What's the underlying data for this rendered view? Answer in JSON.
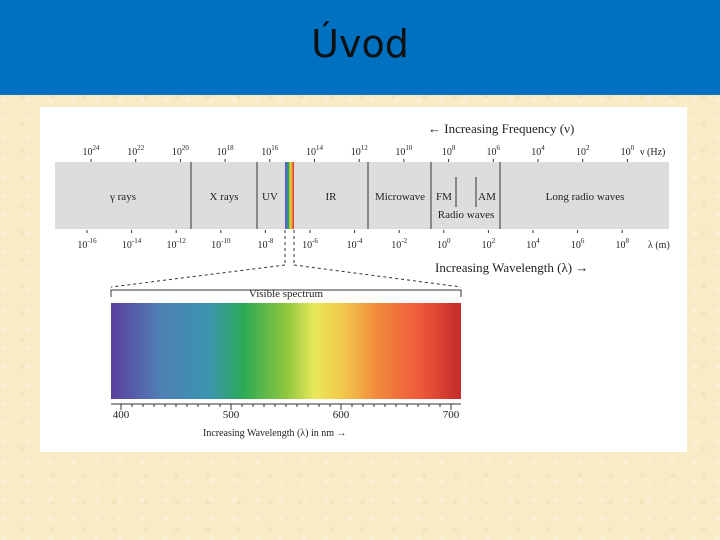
{
  "slide": {
    "title": "Úvod"
  },
  "diagram": {
    "frequency_caption": "← Increasing Frequency (ν)",
    "frequency_unit": "ν (Hz)",
    "frequency_ticks": [
      {
        "base": "10",
        "exp": "24"
      },
      {
        "base": "10",
        "exp": "22"
      },
      {
        "base": "10",
        "exp": "20"
      },
      {
        "base": "10",
        "exp": "18"
      },
      {
        "base": "10",
        "exp": "16"
      },
      {
        "base": "10",
        "exp": "14"
      },
      {
        "base": "10",
        "exp": "12"
      },
      {
        "base": "10",
        "exp": "10"
      },
      {
        "base": "10",
        "exp": "8"
      },
      {
        "base": "10",
        "exp": "6"
      },
      {
        "base": "10",
        "exp": "4"
      },
      {
        "base": "10",
        "exp": "2"
      },
      {
        "base": "10",
        "exp": "0"
      }
    ],
    "bands": [
      "γ rays",
      "X rays",
      "UV",
      "IR",
      "Microwave",
      "FM",
      "AM",
      "Long radio waves"
    ],
    "radio_label": "Radio waves",
    "wavelength_unit": "λ (m)",
    "wavelength_ticks": [
      {
        "base": "10",
        "exp": "-16"
      },
      {
        "base": "10",
        "exp": "-14"
      },
      {
        "base": "10",
        "exp": "-12"
      },
      {
        "base": "10",
        "exp": "-10"
      },
      {
        "base": "10",
        "exp": "-8"
      },
      {
        "base": "10",
        "exp": "-6"
      },
      {
        "base": "10",
        "exp": "-4"
      },
      {
        "base": "10",
        "exp": "-2"
      },
      {
        "base": "10",
        "exp": "0"
      },
      {
        "base": "10",
        "exp": "2"
      },
      {
        "base": "10",
        "exp": "4"
      },
      {
        "base": "10",
        "exp": "6"
      },
      {
        "base": "10",
        "exp": "8"
      }
    ],
    "wavelength_caption": "Increasing Wavelength (λ) →",
    "visible_title": "Visible spectrum",
    "visible_ticks": [
      "400",
      "500",
      "600",
      "700"
    ],
    "visible_caption": "Increasing Wavelength (λ) in nm →",
    "colors": {
      "strip": "#dddddd",
      "spectrum": [
        "#5b3f9e",
        "#4f7fb4",
        "#3a95b0",
        "#2eaa55",
        "#8cc63f",
        "#e8e85a",
        "#f2c94c",
        "#f08a3c",
        "#f05a3c",
        "#c42a2a"
      ]
    }
  }
}
